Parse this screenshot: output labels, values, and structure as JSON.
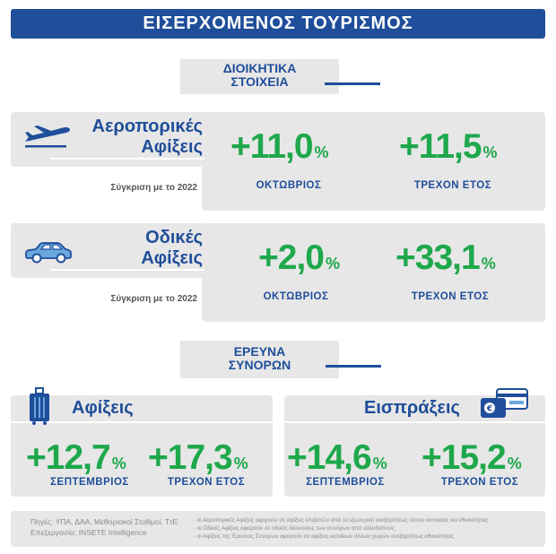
{
  "title": "ΕΙΣΕΡΧΟΜΕΝΟΣ ΤΟΥΡΙΣΜΟΣ",
  "admin": {
    "heading_line1": "ΔΙΟΙΚΗΤΙΚΑ",
    "heading_line2": "ΣΤΟΙΧΕΙΑ"
  },
  "air": {
    "title_line1": "Αεροπορικές",
    "title_line2": "Αφίξεις",
    "compare": "Σύγκριση με το 2022",
    "m1": {
      "value": "+11,0",
      "unit": "%",
      "label": "ΟΚΤΩΒΡΙΟΣ"
    },
    "m2": {
      "value": "+11,5",
      "unit": "%",
      "label": "ΤΡΕΧΟΝ ΕΤΟΣ"
    }
  },
  "road": {
    "title_line1": "Οδικές",
    "title_line2": "Αφίξεις",
    "compare": "Σύγκριση με το 2022",
    "m1": {
      "value": "+2,0",
      "unit": "%",
      "label": "ΟΚΤΩΒΡΙΟΣ"
    },
    "m2": {
      "value": "+33,1",
      "unit": "%",
      "label": "ΤΡΕΧΟΝ ΕΤΟΣ"
    }
  },
  "survey": {
    "heading_line1": "ΕΡΕΥΝΑ",
    "heading_line2": "ΣΥΝΟΡΩΝ"
  },
  "arrivals": {
    "title": "Αφίξεις",
    "m1": {
      "value": "+12,7",
      "unit": "%",
      "label": "ΣΕΠΤΕΜΒΡΙΟΣ"
    },
    "m2": {
      "value": "+17,3",
      "unit": "%",
      "label": "ΤΡΕΧΟΝ ΕΤΟΣ"
    }
  },
  "receipts": {
    "title": "Εισπράξεις",
    "m1": {
      "value": "+14,6",
      "unit": "%",
      "label": "ΣΕΠΤΕΜΒΡΙΟΣ"
    },
    "m2": {
      "value": "+15,2",
      "unit": "%",
      "label": "ΤΡΕΧΟΝ ΕΤΟΣ"
    }
  },
  "footer": {
    "sources": "Πηγές: ΥΠΑ, ΔΑΑ, Μεθοριακοί Σταθμοί, ΤτΕ",
    "processing": "Επεξεργασία: INSETE Intelligence",
    "note1": "- οι Αεροπορικές Αφίξεις αφορούν σε αφίξεις επιβατών από το εξωτερικό ανεξαρτήτως τόπου κατοικίας και εθνικότητας",
    "note2": "- οι Οδικές Αφίξεις αφορούν σε οδικές διελεύσεις των συνόρων από αλλοδαπούς",
    "note3": "- οι Αφίξεις της Έρευνας Συνόρων αφορούν σε αφίξεις κατοίκων άλλων χωρών ανεξαρτήτως εθνικότητας"
  },
  "colors": {
    "brand_blue": "#1f4e9a",
    "positive_green": "#1ea84b",
    "panel_gray": "#e7e7e7"
  }
}
